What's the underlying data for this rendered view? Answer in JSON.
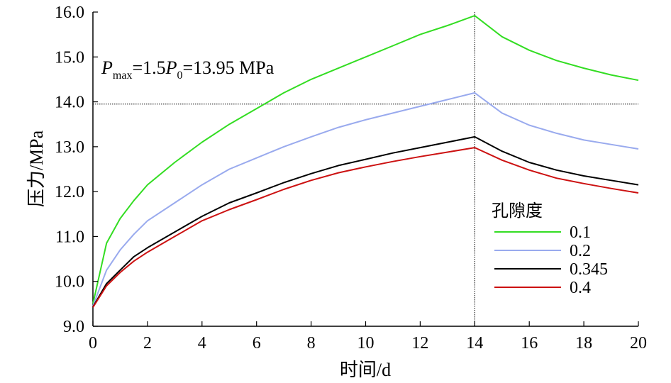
{
  "chart_data": {
    "type": "line",
    "xlabel": "时间/d",
    "ylabel": "压力/MPa",
    "xlim": [
      0,
      20
    ],
    "ylim": [
      9.0,
      16.0
    ],
    "xticks": [
      "0",
      "2",
      "4",
      "6",
      "8",
      "10",
      "12",
      "14",
      "16",
      "18",
      "20"
    ],
    "yticks": [
      "9.0",
      "10.0",
      "11.0",
      "12.0",
      "13.0",
      "14.0",
      "15.0",
      "16.0"
    ],
    "grid": false,
    "legend": {
      "title": "孔隙度",
      "placement": "right"
    },
    "reference_lines": [
      {
        "orientation": "horizontal",
        "value": 13.95,
        "style": "dotted"
      },
      {
        "orientation": "vertical",
        "value": 14,
        "style": "dotted"
      }
    ],
    "annotation": {
      "p1": "P",
      "p1_sub": "max",
      "mid": "=1.5",
      "p2": "P",
      "p2_sub": "0",
      "tail": "=13.95 MPa"
    },
    "series": [
      {
        "name": "0.1",
        "color": "#33dd22",
        "x": [
          0,
          0.5,
          1,
          1.5,
          2,
          3,
          4,
          5,
          6,
          7,
          8,
          9,
          10,
          11,
          12,
          13,
          14,
          15,
          16,
          17,
          18,
          19,
          20
        ],
        "y": [
          9.5,
          10.85,
          11.4,
          11.8,
          12.15,
          12.65,
          13.1,
          13.5,
          13.85,
          14.2,
          14.5,
          14.75,
          15.0,
          15.25,
          15.5,
          15.7,
          15.92,
          15.45,
          15.15,
          14.92,
          14.75,
          14.6,
          14.48
        ]
      },
      {
        "name": "0.2",
        "color": "#99aaee",
        "x": [
          0,
          0.5,
          1,
          1.5,
          2,
          3,
          4,
          5,
          6,
          7,
          8,
          9,
          10,
          11,
          12,
          13,
          14,
          15,
          16,
          17,
          18,
          19,
          20
        ],
        "y": [
          9.45,
          10.25,
          10.7,
          11.05,
          11.35,
          11.75,
          12.15,
          12.5,
          12.75,
          13.0,
          13.22,
          13.43,
          13.6,
          13.75,
          13.9,
          14.05,
          14.2,
          13.75,
          13.48,
          13.3,
          13.15,
          13.05,
          12.95
        ]
      },
      {
        "name": "0.345",
        "color": "#000000",
        "x": [
          0,
          0.5,
          1,
          1.5,
          2,
          3,
          4,
          5,
          6,
          7,
          8,
          9,
          10,
          11,
          12,
          13,
          14,
          15,
          16,
          17,
          18,
          19,
          20
        ],
        "y": [
          9.43,
          9.95,
          10.25,
          10.55,
          10.75,
          11.1,
          11.45,
          11.75,
          11.97,
          12.2,
          12.4,
          12.58,
          12.72,
          12.86,
          12.98,
          13.1,
          13.22,
          12.9,
          12.65,
          12.48,
          12.35,
          12.25,
          12.15
        ]
      },
      {
        "name": "0.4",
        "color": "#cc1111",
        "x": [
          0,
          0.5,
          1,
          1.5,
          2,
          3,
          4,
          5,
          6,
          7,
          8,
          9,
          10,
          11,
          12,
          13,
          14,
          15,
          16,
          17,
          18,
          19,
          20
        ],
        "y": [
          9.42,
          9.9,
          10.2,
          10.45,
          10.65,
          11.0,
          11.35,
          11.6,
          11.82,
          12.05,
          12.25,
          12.42,
          12.55,
          12.67,
          12.78,
          12.88,
          12.98,
          12.7,
          12.48,
          12.3,
          12.18,
          12.07,
          11.97
        ]
      }
    ]
  }
}
